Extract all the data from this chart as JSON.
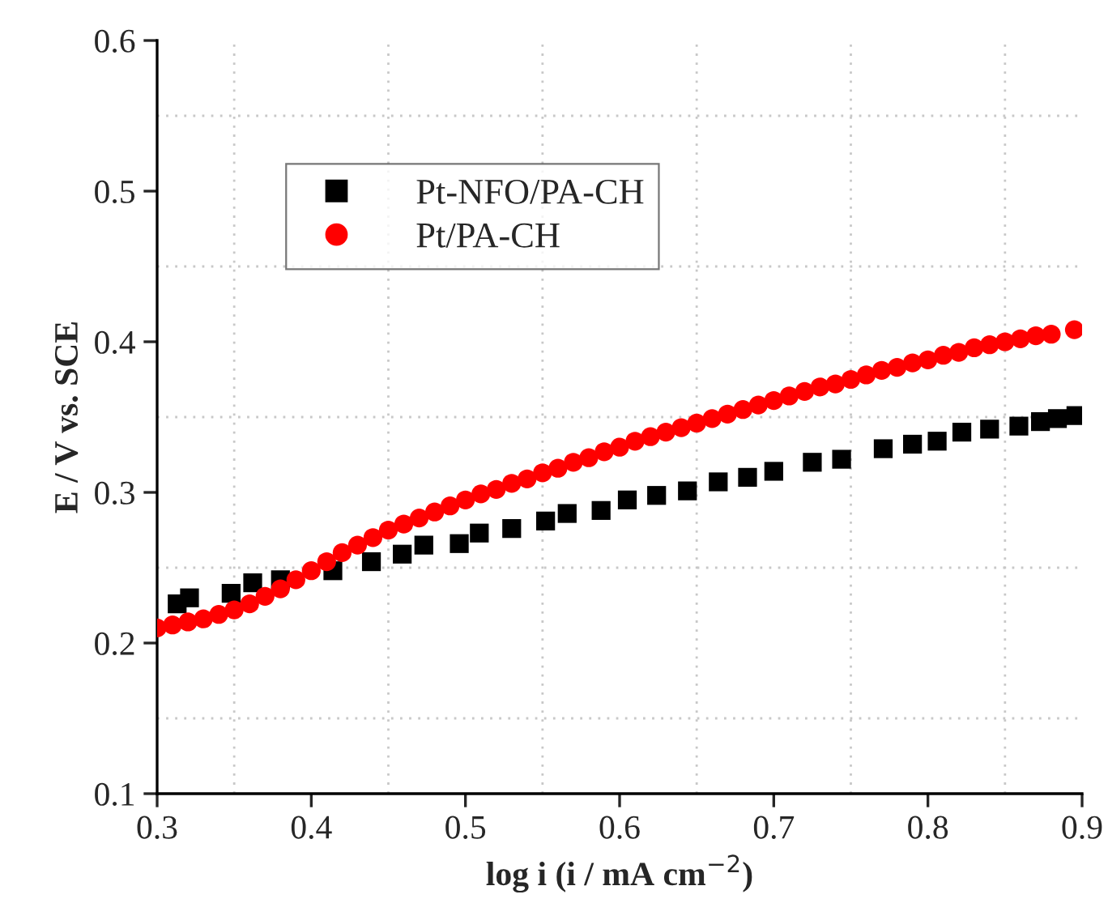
{
  "chart_data": {
    "type": "scatter",
    "xlabel": "log i (i / mA cm$^{−2}$)",
    "ylabel": "E / V vs. SCE",
    "xlim": [
      0.3,
      0.9
    ],
    "xticks": [
      0.3,
      0.4,
      0.5,
      0.6,
      0.7,
      0.8,
      0.9
    ],
    "ylim": [
      0.1,
      0.6
    ],
    "yticks": [
      0.1,
      0.2,
      0.3,
      0.4,
      0.5,
      0.6
    ],
    "grid": true,
    "legend": "top left",
    "series": [
      {
        "name": "Pt-NFO/PA-CH",
        "color": "#000000",
        "marker": "square",
        "x": [
          0.313,
          0.321,
          0.348,
          0.362,
          0.38,
          0.405,
          0.414,
          0.439,
          0.459,
          0.473,
          0.496,
          0.509,
          0.53,
          0.552,
          0.566,
          0.588,
          0.605,
          0.624,
          0.644,
          0.664,
          0.683,
          0.7,
          0.725,
          0.744,
          0.771,
          0.79,
          0.806,
          0.822,
          0.84,
          0.859,
          0.873,
          0.884,
          0.896
        ],
        "values": [
          0.226,
          0.23,
          0.233,
          0.24,
          0.242,
          null,
          0.248,
          0.254,
          0.259,
          0.265,
          0.266,
          0.273,
          0.276,
          0.281,
          0.286,
          0.288,
          0.295,
          0.298,
          0.301,
          0.307,
          0.31,
          0.314,
          0.32,
          0.322,
          0.329,
          0.332,
          0.334,
          0.34,
          0.342,
          0.344,
          0.347,
          0.349,
          0.351
        ]
      },
      {
        "name": "Pt/PA-CH",
        "color": "#ff0000",
        "marker": "circle",
        "x": [
          0.3,
          0.31,
          0.32,
          0.33,
          0.34,
          0.35,
          0.36,
          0.37,
          0.38,
          0.39,
          0.4,
          0.41,
          0.42,
          0.43,
          0.44,
          0.45,
          0.46,
          0.47,
          0.48,
          0.49,
          0.5,
          0.51,
          0.52,
          0.53,
          0.54,
          0.55,
          0.56,
          0.57,
          0.58,
          0.59,
          0.6,
          0.61,
          0.62,
          0.63,
          0.64,
          0.65,
          0.66,
          0.67,
          0.68,
          0.69,
          0.7,
          0.71,
          0.72,
          0.73,
          0.74,
          0.75,
          0.76,
          0.77,
          0.78,
          0.79,
          0.8,
          0.81,
          0.82,
          0.83,
          0.84,
          0.85,
          0.86,
          0.87,
          0.88,
          0.895
        ],
        "values": [
          0.21,
          0.212,
          0.214,
          0.216,
          0.219,
          0.222,
          0.226,
          0.231,
          0.236,
          0.242,
          0.248,
          0.254,
          0.26,
          0.265,
          0.27,
          0.275,
          0.279,
          0.283,
          0.287,
          0.291,
          0.295,
          0.299,
          0.302,
          0.306,
          0.309,
          0.313,
          0.316,
          0.32,
          0.323,
          0.327,
          0.33,
          0.334,
          0.337,
          0.34,
          0.343,
          0.346,
          0.349,
          0.352,
          0.355,
          0.358,
          0.361,
          0.364,
          0.367,
          0.37,
          0.372,
          0.375,
          0.378,
          0.381,
          0.383,
          0.386,
          0.388,
          0.391,
          0.393,
          0.396,
          0.398,
          0.4,
          0.402,
          0.404,
          0.405,
          0.408
        ]
      }
    ]
  }
}
